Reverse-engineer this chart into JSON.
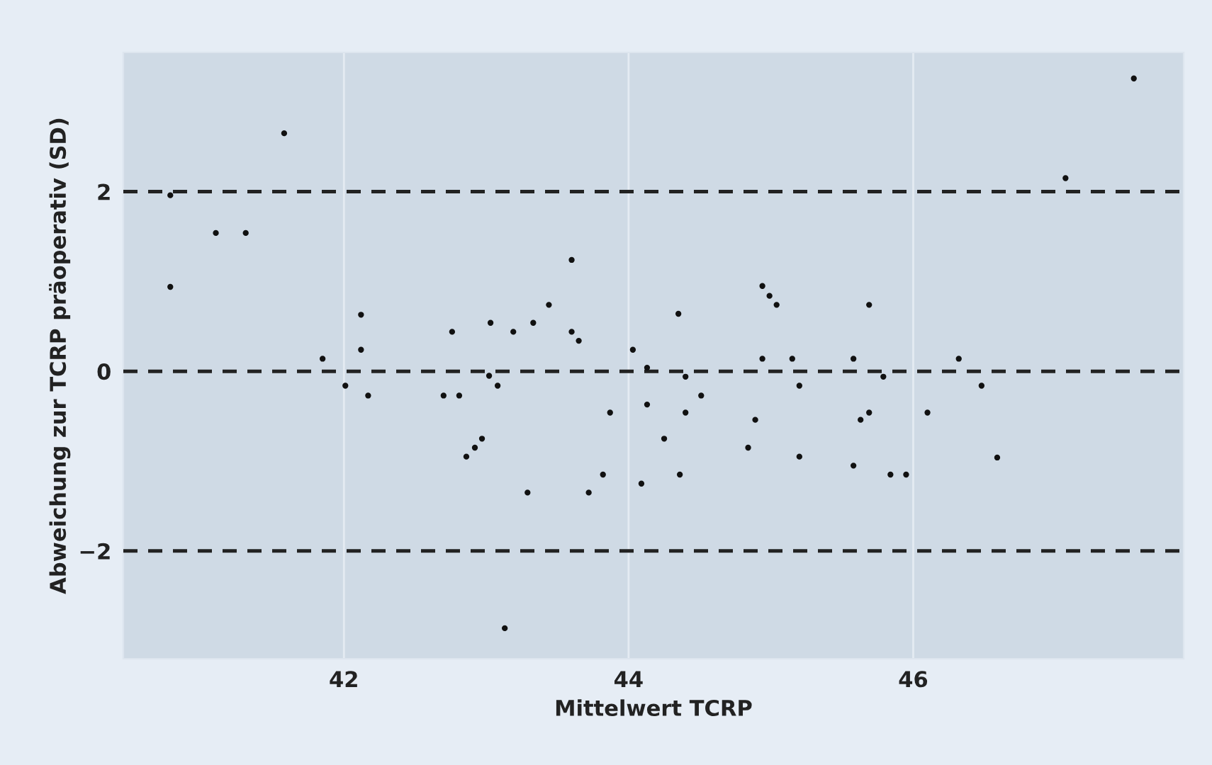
{
  "chart_data": {
    "type": "scatter",
    "xlabel": "Mittelwert TCRP",
    "ylabel": "Abweichung zur TCRP präoperativ (SD)",
    "x": [
      40.78,
      40.78,
      41.1,
      41.31,
      41.58,
      41.85,
      42.01,
      42.12,
      42.12,
      42.17,
      42.7,
      42.76,
      42.81,
      42.86,
      42.92,
      42.97,
      43.03,
      43.02,
      43.08,
      43.13,
      43.19,
      43.33,
      43.44,
      43.6,
      43.6,
      43.65,
      43.29,
      43.72,
      43.82,
      43.87,
      44.03,
      44.09,
      44.13,
      44.13,
      44.25,
      44.35,
      44.36,
      44.4,
      44.4,
      44.51,
      44.84,
      44.89,
      44.94,
      44.94,
      44.99,
      45.04,
      45.15,
      45.2,
      45.2,
      45.58,
      45.58,
      45.63,
      45.69,
      45.69,
      45.79,
      45.84,
      45.95,
      46.1,
      46.32,
      46.48,
      46.59,
      47.07,
      47.55
    ],
    "values": [
      1.96,
      0.94,
      1.54,
      1.54,
      2.65,
      0.14,
      -0.16,
      0.63,
      0.24,
      -0.27,
      -0.27,
      0.44,
      -0.27,
      -0.95,
      -0.85,
      -0.75,
      0.54,
      -0.05,
      -0.16,
      -2.86,
      0.44,
      0.54,
      0.74,
      1.24,
      0.44,
      0.34,
      -1.35,
      -1.35,
      -1.15,
      -0.46,
      0.24,
      -1.25,
      0.04,
      -0.37,
      -0.75,
      0.64,
      -1.15,
      -0.06,
      -0.46,
      -0.27,
      -0.85,
      -0.54,
      0.95,
      0.14,
      0.84,
      0.74,
      0.14,
      -0.16,
      -0.95,
      0.14,
      -1.05,
      -0.54,
      0.74,
      -0.46,
      -0.06,
      -1.15,
      -1.15,
      -0.46,
      0.14,
      -0.16,
      -0.96,
      2.15,
      3.26
    ],
    "color": "#111111",
    "marker": "circle",
    "xlim": [
      40.45,
      47.9
    ],
    "ylim": [
      -3.2,
      3.55
    ],
    "xticks": [
      42,
      44,
      46
    ],
    "yticks": [
      {
        "value": -2,
        "label": "−2"
      },
      0,
      2
    ],
    "grid": "x",
    "ref_lines": [
      {
        "axis": "y",
        "value": 2,
        "color": "#222222",
        "line_style": "dashed"
      },
      {
        "axis": "y",
        "value": 0,
        "color": "#222222",
        "line_style": "dashed"
      },
      {
        "axis": "y",
        "value": -2,
        "color": "#222222",
        "line_style": "dashed"
      }
    ]
  }
}
